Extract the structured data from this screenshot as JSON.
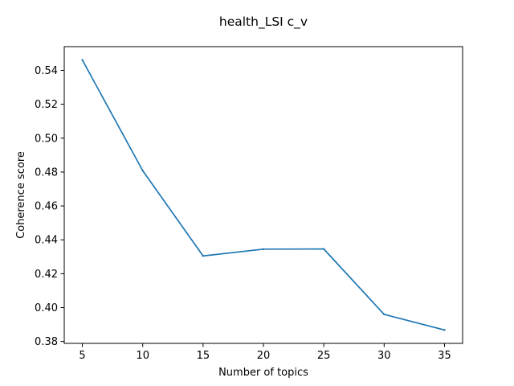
{
  "chart_data": {
    "type": "line",
    "title": "health_LSI c_v",
    "xlabel": "Number of topics",
    "ylabel": "Coherence score",
    "x": [
      5,
      10,
      15,
      20,
      25,
      30,
      35
    ],
    "series": [
      {
        "values": [
          0.5461,
          0.4808,
          0.4305,
          0.4345,
          0.4346,
          0.396,
          0.3868
        ],
        "color": "#1f77b4"
      }
    ],
    "xlim": [
      3.5,
      36.5
    ],
    "ylim": [
      0.3789,
      0.554
    ],
    "xticks": [
      5,
      10,
      15,
      20,
      25,
      30,
      35
    ],
    "xtick_labels": [
      "5",
      "10",
      "15",
      "20",
      "25",
      "30",
      "35"
    ],
    "yticks": [
      0.38,
      0.4,
      0.42,
      0.44,
      0.46,
      0.48,
      0.5,
      0.52,
      0.54
    ],
    "ytick_labels": [
      "0.38",
      "0.40",
      "0.42",
      "0.44",
      "0.46",
      "0.48",
      "0.50",
      "0.52",
      "0.54"
    ],
    "grid": false,
    "legend": false
  }
}
